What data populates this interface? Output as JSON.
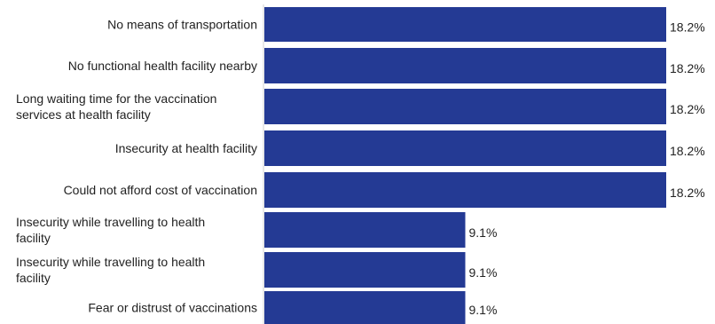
{
  "chart_data": {
    "type": "bar",
    "orientation": "horizontal",
    "categories": [
      [
        "No means of transportation"
      ],
      [
        "No functional health facility nearby"
      ],
      [
        "Long waiting time for the vaccination",
        "services at health facility"
      ],
      [
        "Insecurity at health facility"
      ],
      [
        "Could not afford cost of vaccination"
      ],
      [
        "Insecurity while travelling to health",
        "facility"
      ],
      [
        "Insecurity while travelling to health",
        "facility"
      ],
      [
        "Fear or distrust of vaccinations"
      ]
    ],
    "values": [
      18.2,
      18.2,
      18.2,
      18.2,
      18.2,
      9.1,
      9.1,
      9.1
    ],
    "value_labels": [
      "18.2%",
      "18.2%",
      "18.2%",
      "18.2%",
      "18.2%",
      "9.1%",
      "9.1%",
      "9.1%"
    ],
    "xlim": [
      0,
      18.2
    ],
    "grid": false,
    "legend": "none",
    "bar_color": "#243a94"
  }
}
